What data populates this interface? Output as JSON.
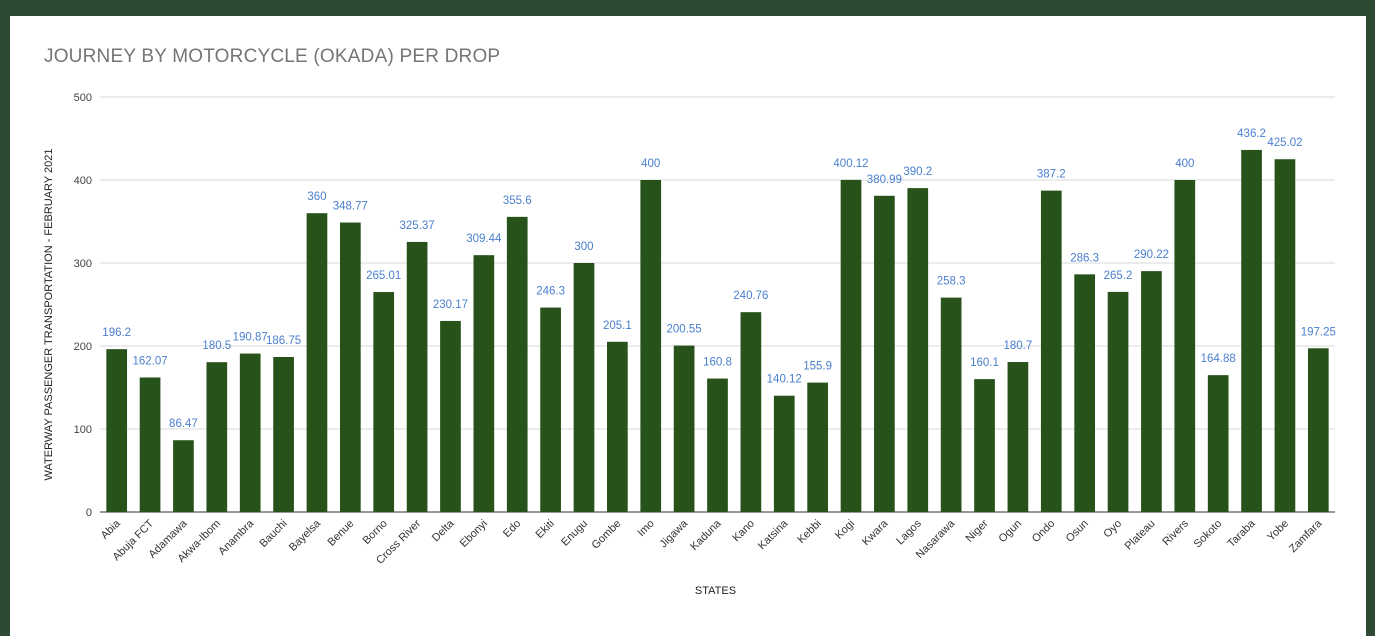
{
  "chart_data": {
    "type": "bar",
    "title": "JOURNEY BY MOTORCYCLE (OKADA) PER DROP",
    "xlabel": "STATES",
    "ylabel": "WATERWAY PASSENGER TRANSPORTATION - FEBRUARY 2021",
    "ylim": [
      0,
      500
    ],
    "yticks": [
      0,
      100,
      200,
      300,
      400,
      500
    ],
    "grid": true,
    "bar_color": "#27521a",
    "label_color": "#4a7fcf",
    "categories": [
      "Abia",
      "Abuja FCT",
      "Adamawa",
      "Akwa-Ibom",
      "Anambra",
      "Bauchi",
      "Bayelsa",
      "Benue",
      "Borno",
      "Cross River",
      "Delta",
      "Ebonyi",
      "Edo",
      "Ekiti",
      "Enugu",
      "Gombe",
      "Imo",
      "Jigawa",
      "Kaduna",
      "Kano",
      "Katsina",
      "Kebbi",
      "Kogi",
      "Kwara",
      "Lagos",
      "Nasarawa",
      "Niger",
      "Ogun",
      "Ondo",
      "Osun",
      "Oyo",
      "Plateau",
      "Rivers",
      "Sokoto",
      "Taraba",
      "Yobe",
      "Zamfara"
    ],
    "values": [
      196.2,
      162.07,
      86.47,
      180.5,
      190.87,
      186.75,
      360,
      348.77,
      265.01,
      325.37,
      230.17,
      309.44,
      355.6,
      246.3,
      300,
      205.1,
      400,
      200.55,
      160.8,
      240.76,
      140.12,
      155.9,
      400.12,
      380.99,
      390.2,
      258.3,
      160.1,
      180.7,
      387.2,
      286.3,
      265.2,
      290.22,
      400,
      164.88,
      436.2,
      425.02,
      197.25
    ]
  }
}
